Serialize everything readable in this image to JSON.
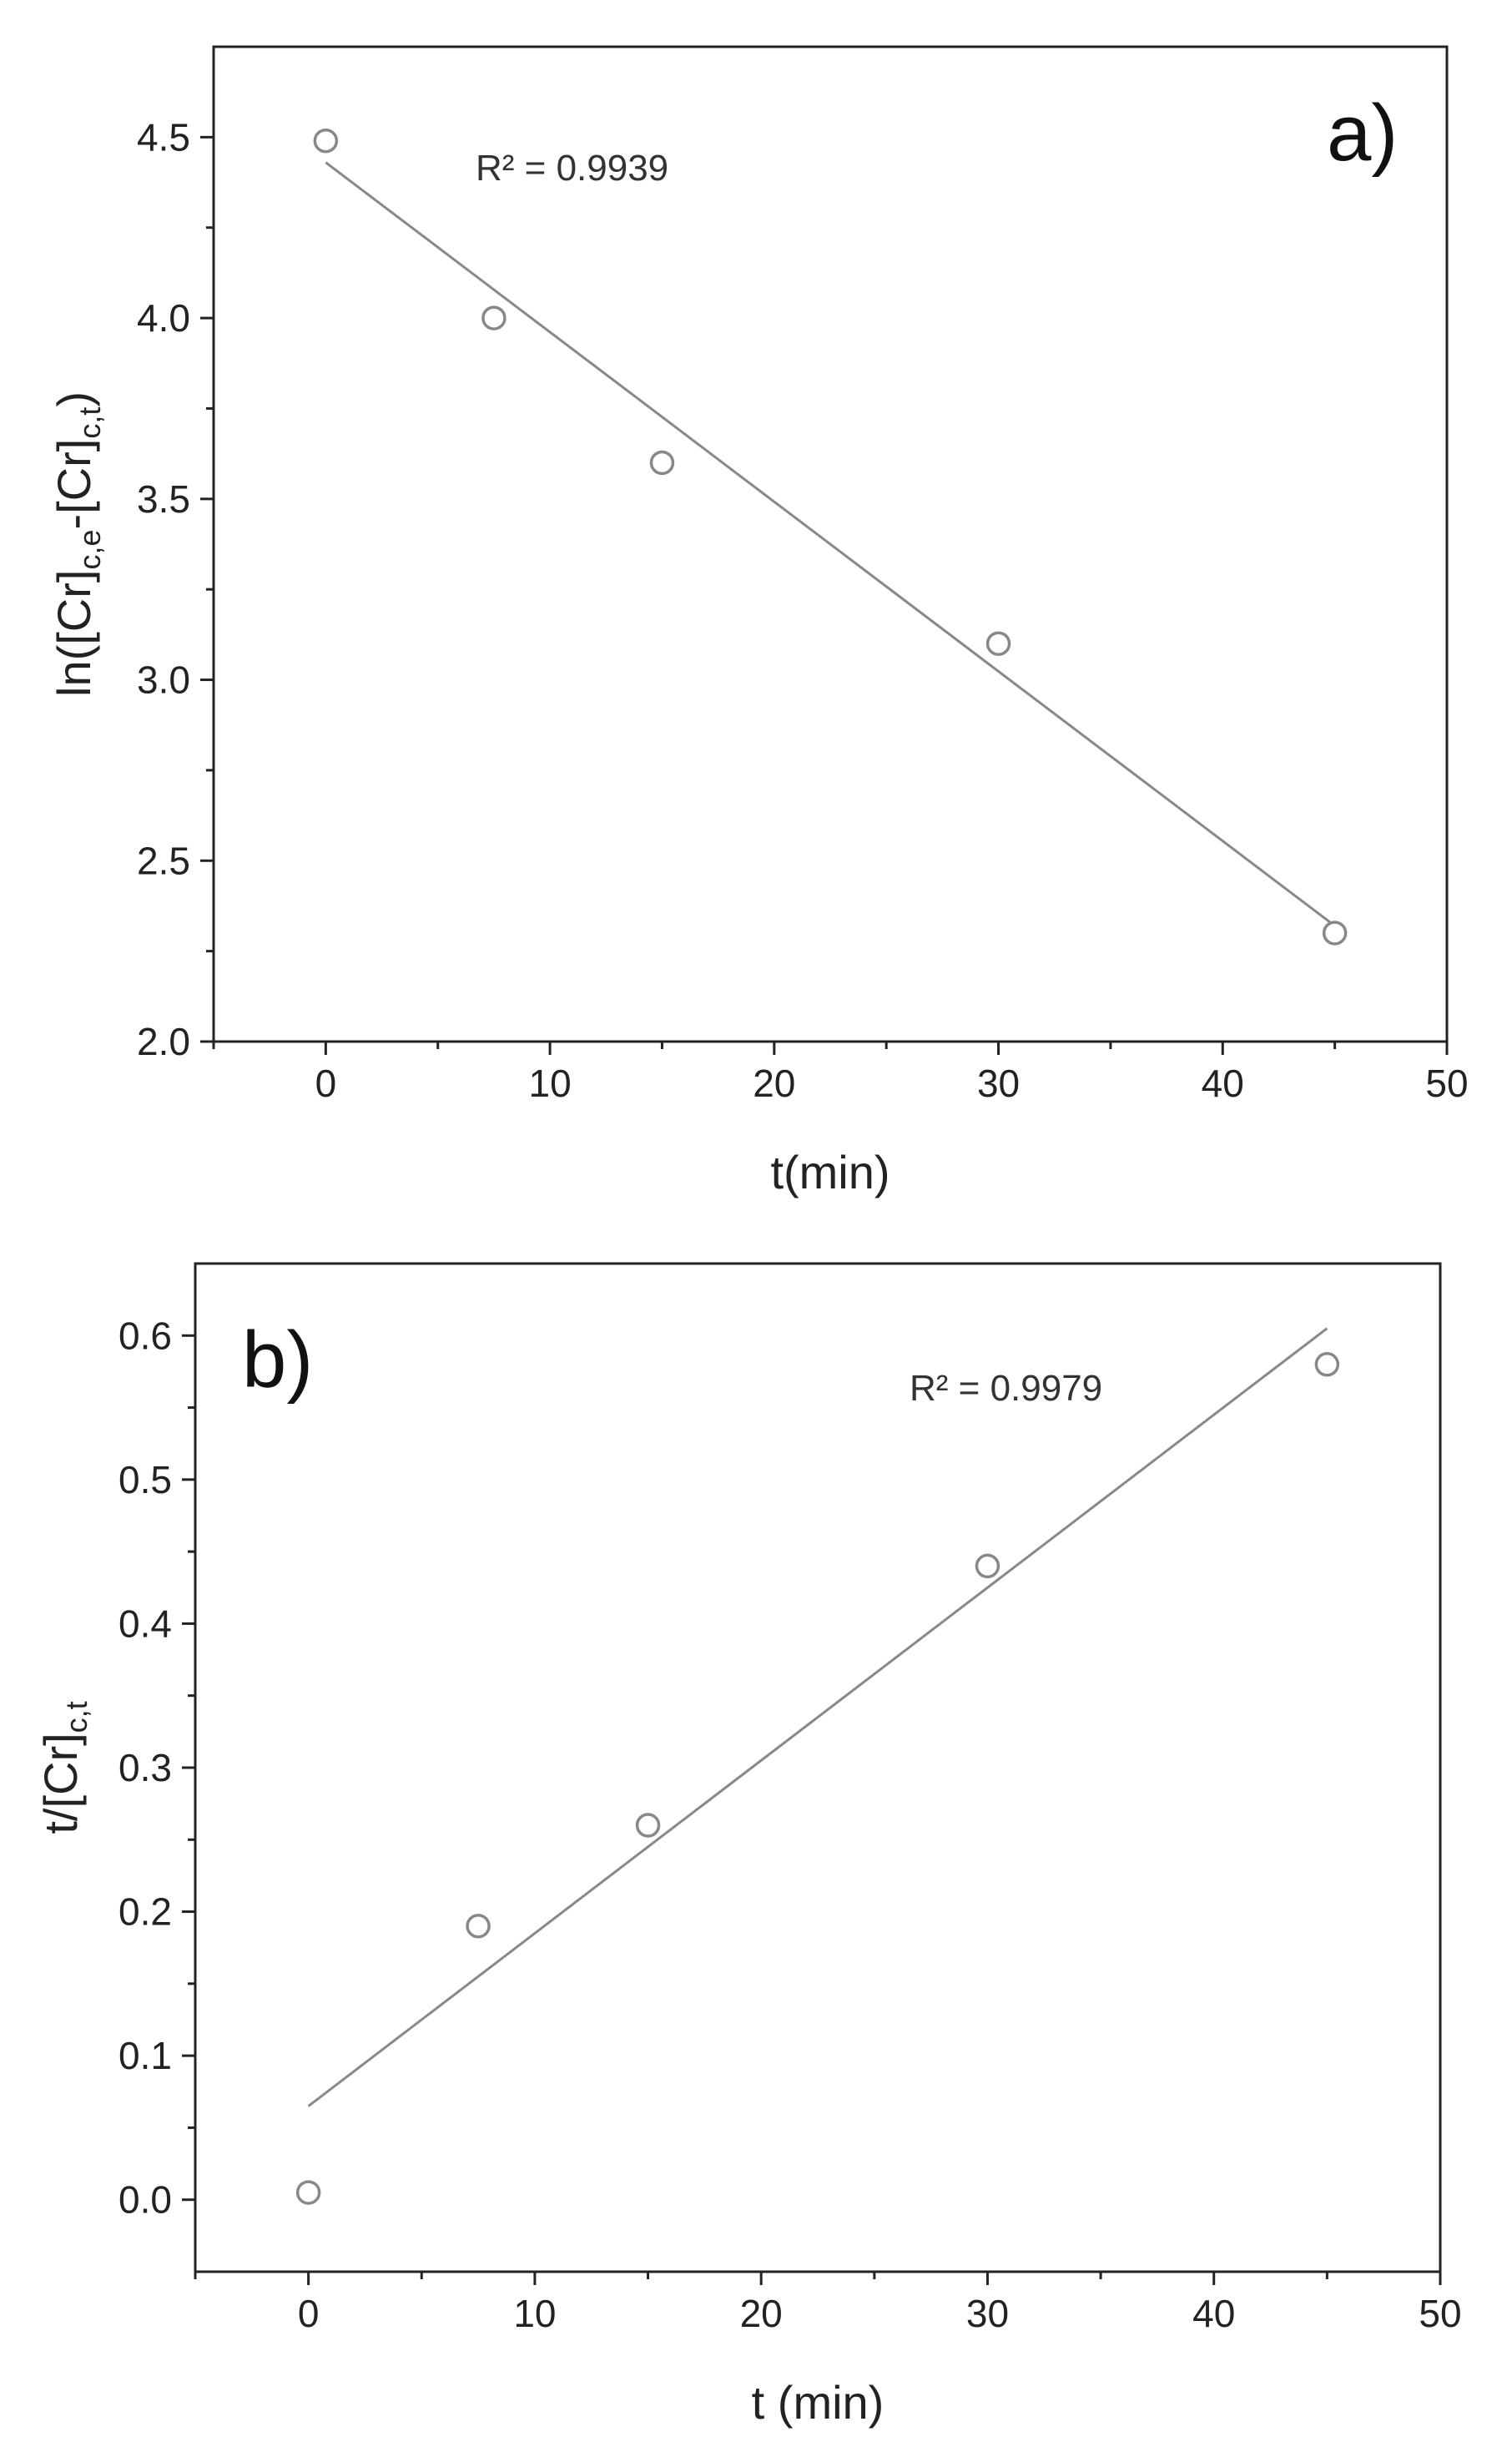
{
  "chart_data": [
    {
      "type": "scatter",
      "panel_label": "a)",
      "x": [
        0,
        7.5,
        15,
        30,
        45
      ],
      "y": [
        4.49,
        4.0,
        3.6,
        3.1,
        2.3
      ],
      "fit_line": {
        "x": [
          0,
          45
        ],
        "y": [
          4.43,
          2.32
        ]
      },
      "annotation": "R² = 0.9939",
      "xlabel": "t(min)",
      "ylabel": "ln([Cr]c,e-[Cr]c,t)",
      "xlim": [
        -5,
        50
      ],
      "ylim": [
        2.0,
        4.75
      ],
      "xticks": [
        0,
        10,
        20,
        30,
        40,
        50
      ],
      "yticks": [
        2.0,
        2.5,
        3.0,
        3.5,
        4.0,
        4.5
      ],
      "xtick_labels": [
        "0",
        "10",
        "20",
        "30",
        "40",
        "50"
      ],
      "ytick_labels": [
        "2.0",
        "2.5",
        "3.0",
        "3.5",
        "4.0",
        "4.5"
      ],
      "grid": false
    },
    {
      "type": "scatter",
      "panel_label": "b)",
      "x": [
        0,
        7.5,
        15,
        30,
        45
      ],
      "y": [
        0.005,
        0.19,
        0.26,
        0.44,
        0.58
      ],
      "fit_line": {
        "x": [
          0,
          45
        ],
        "y": [
          0.065,
          0.605
        ]
      },
      "annotation": "R² = 0.9979",
      "xlabel": "t (min)",
      "ylabel": "t/[Cr]c,t",
      "xlim": [
        -5,
        50
      ],
      "ylim": [
        -0.05,
        0.65
      ],
      "xticks": [
        0,
        10,
        20,
        30,
        40,
        50
      ],
      "yticks": [
        0.0,
        0.1,
        0.2,
        0.3,
        0.4,
        0.5,
        0.6
      ],
      "xtick_labels": [
        "0",
        "10",
        "20",
        "30",
        "40",
        "50"
      ],
      "ytick_labels": [
        "0.0",
        "0.1",
        "0.2",
        "0.3",
        "0.4",
        "0.5",
        "0.6"
      ],
      "grid": false
    }
  ]
}
